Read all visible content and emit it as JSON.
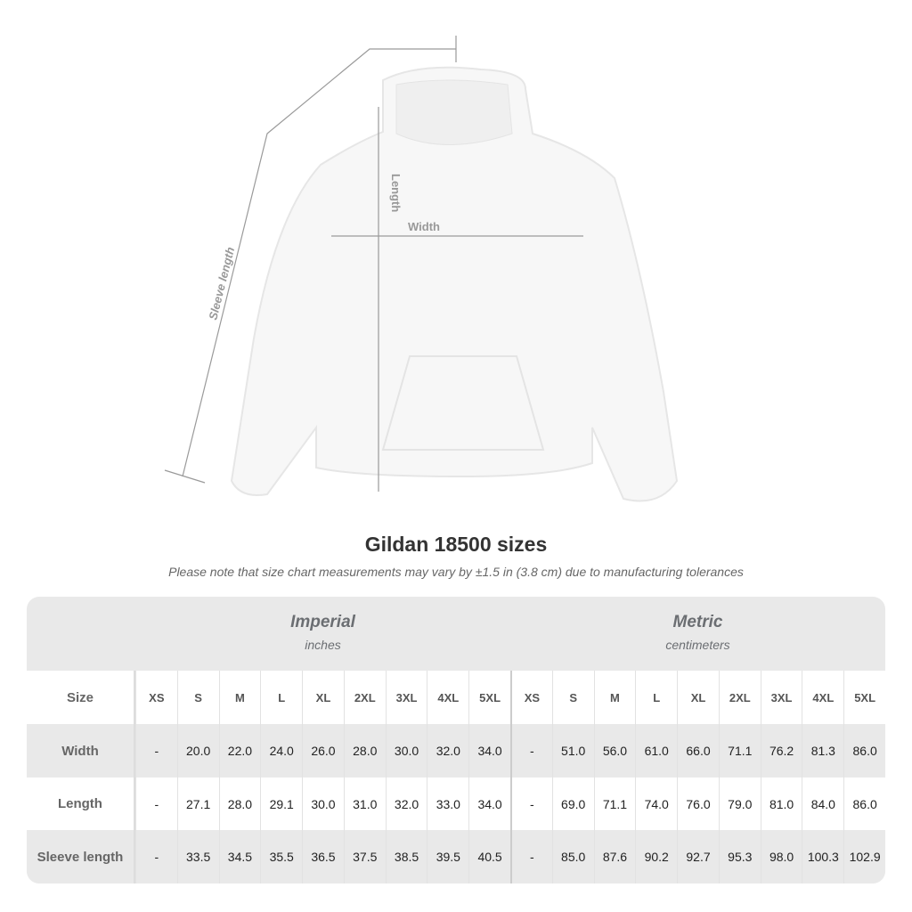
{
  "diagram": {
    "length_label": "Length",
    "width_label": "Width",
    "sleeve_label": "Sleeve length"
  },
  "title": "Gildan 18500 sizes",
  "note": "Please note that size chart measurements may vary by ±1.5 in (3.8 cm) due to manufacturing tolerances",
  "imperial": {
    "unit": "Imperial",
    "sub": "inches"
  },
  "metric": {
    "unit": "Metric",
    "sub": "centimeters"
  },
  "size_label": "Size",
  "sizes": [
    "XS",
    "S",
    "M",
    "L",
    "XL",
    "2XL",
    "3XL",
    "4XL",
    "5XL"
  ],
  "rows": [
    {
      "label": "Width",
      "imperial": [
        "-",
        "20.0",
        "22.0",
        "24.0",
        "26.0",
        "28.0",
        "30.0",
        "32.0",
        "34.0"
      ],
      "metric": [
        "-",
        "51.0",
        "56.0",
        "61.0",
        "66.0",
        "71.1",
        "76.2",
        "81.3",
        "86.0"
      ]
    },
    {
      "label": "Length",
      "imperial": [
        "-",
        "27.1",
        "28.0",
        "29.1",
        "30.0",
        "31.0",
        "32.0",
        "33.0",
        "34.0"
      ],
      "metric": [
        "-",
        "69.0",
        "71.1",
        "74.0",
        "76.0",
        "79.0",
        "81.0",
        "84.0",
        "86.0"
      ]
    },
    {
      "label": "Sleeve length",
      "imperial": [
        "-",
        "33.5",
        "34.5",
        "35.5",
        "36.5",
        "37.5",
        "38.5",
        "39.5",
        "40.5"
      ],
      "metric": [
        "-",
        "85.0",
        "87.6",
        "90.2",
        "92.7",
        "95.3",
        "98.0",
        "100.3",
        "102.9"
      ]
    }
  ]
}
